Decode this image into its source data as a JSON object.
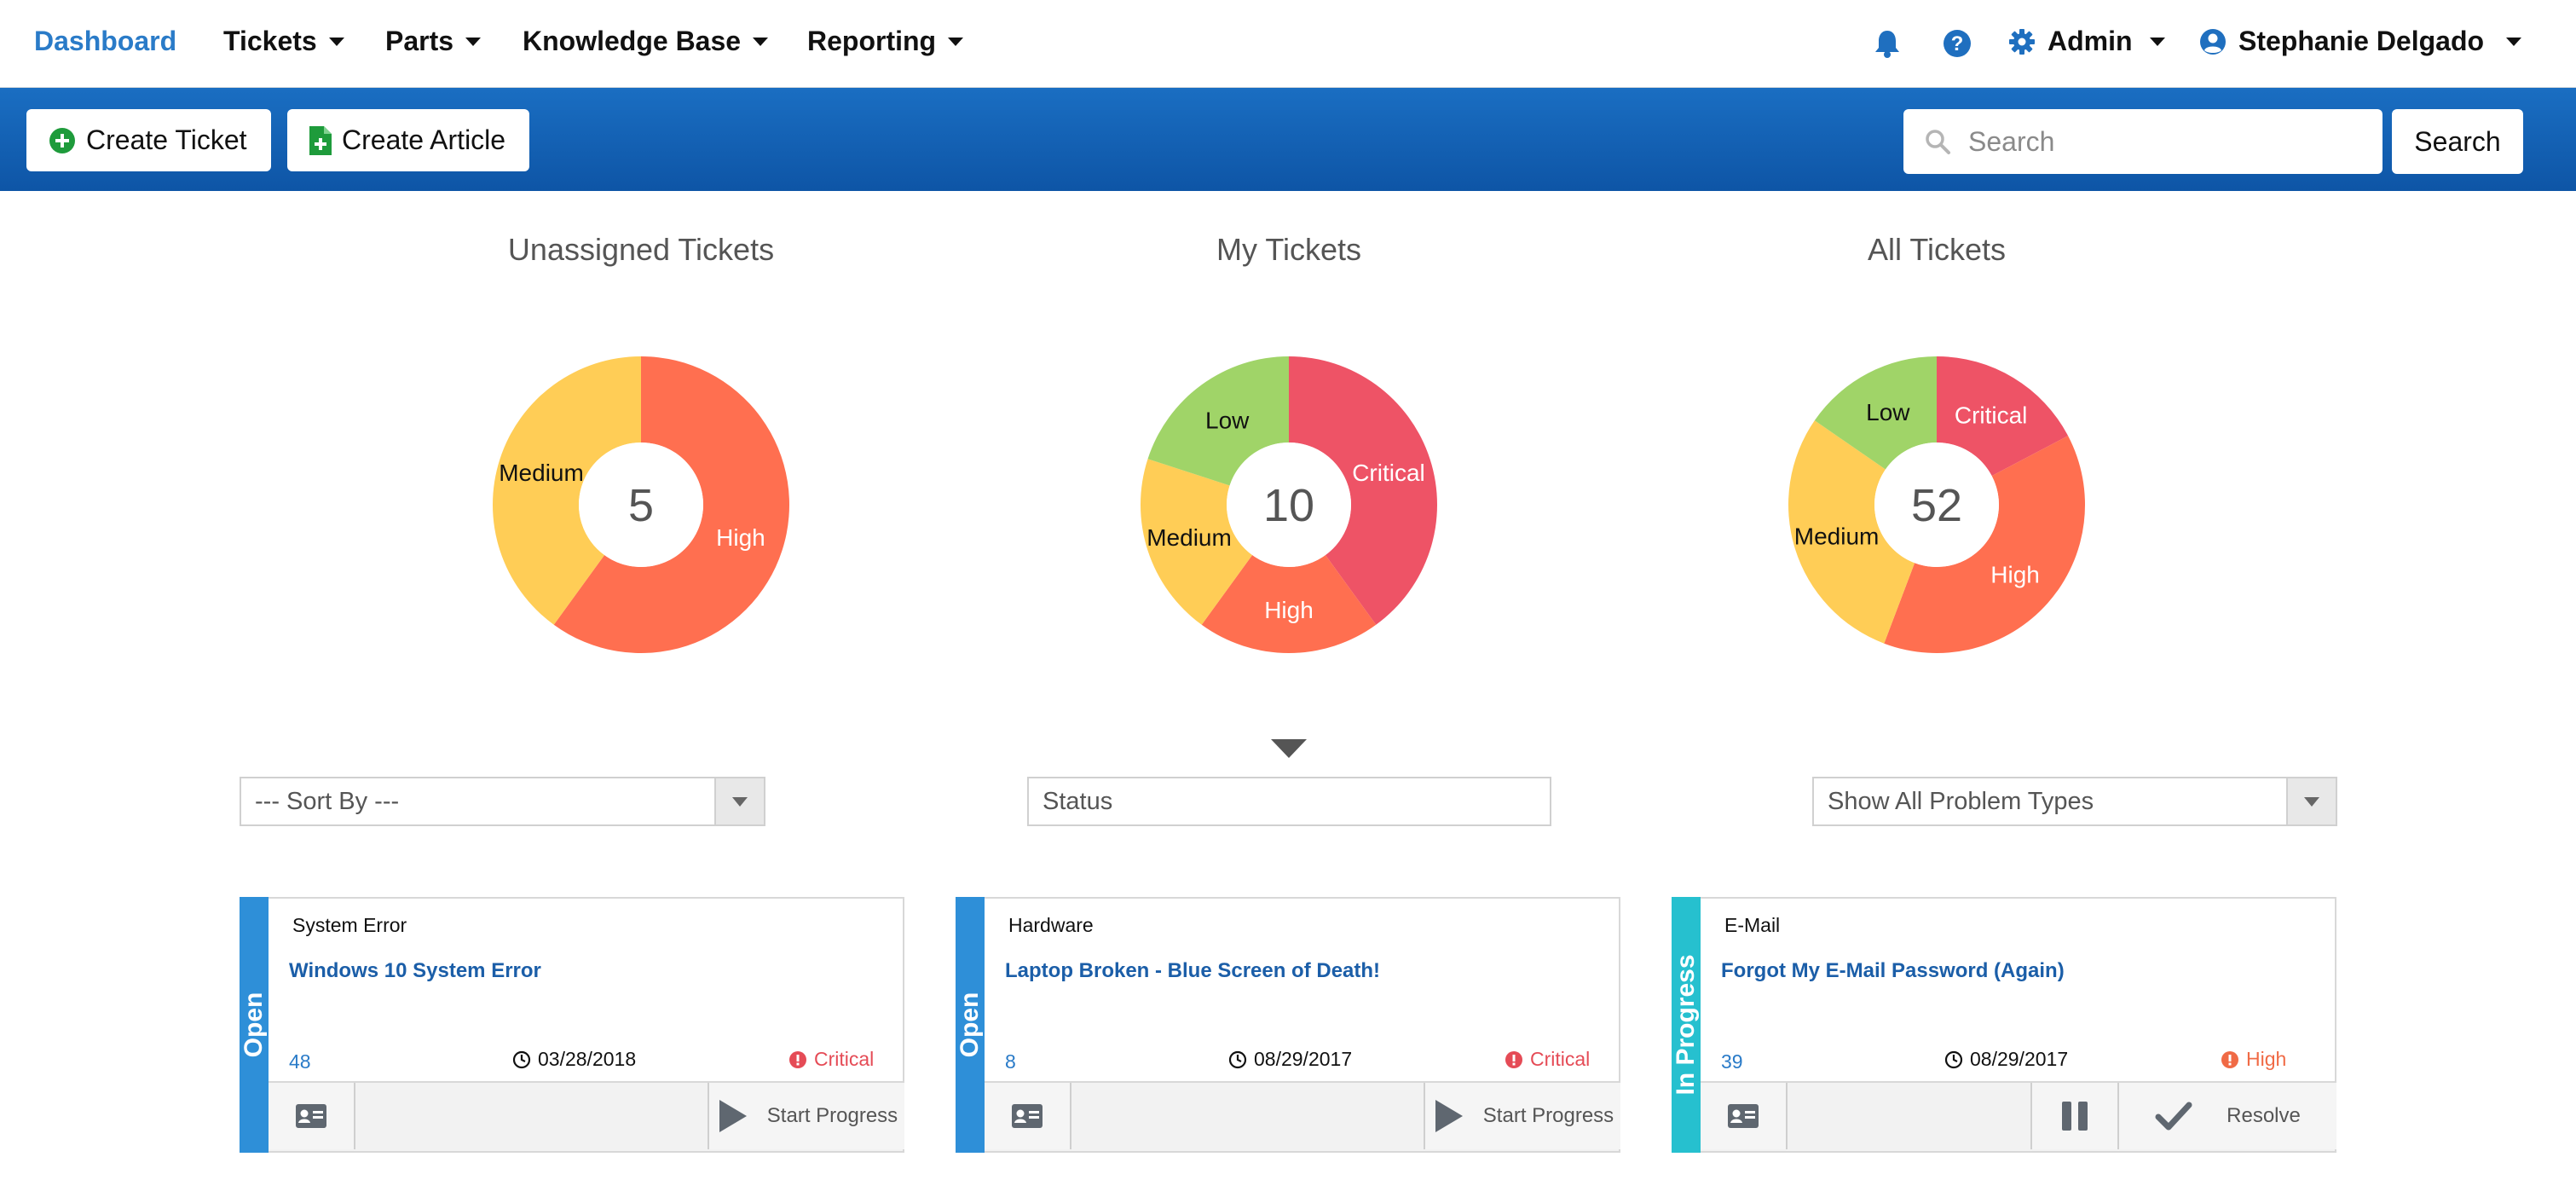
{
  "nav": {
    "brand": "Dashboard",
    "menus": [
      "Tickets",
      "Parts",
      "Knowledge Base",
      "Reporting"
    ],
    "admin": "Admin",
    "user": "Stephanie Delgado"
  },
  "toolbar": {
    "create_ticket": "Create Ticket",
    "create_article": "Create Article",
    "search_placeholder": "Search",
    "search_button": "Search"
  },
  "chart_data": [
    {
      "type": "pie",
      "title": "Unassigned Tickets",
      "total": "5",
      "labels": [
        "High",
        "Medium"
      ],
      "values": [
        3,
        2
      ],
      "colors": [
        "#ff6f50",
        "#ffcd56"
      ]
    },
    {
      "type": "pie",
      "title": "My Tickets",
      "total": "10",
      "labels": [
        "Critical",
        "High",
        "Medium",
        "Low"
      ],
      "values": [
        4,
        2,
        2,
        2
      ],
      "colors": [
        "#ee5366",
        "#ff6f50",
        "#ffcd56",
        "#a0d468"
      ]
    },
    {
      "type": "pie",
      "title": "All Tickets",
      "total": "52",
      "labels": [
        "Critical",
        "High",
        "Medium",
        "Low"
      ],
      "values": [
        9,
        20,
        15,
        8
      ],
      "colors": [
        "#ee5366",
        "#ff6f50",
        "#ffcd56",
        "#a0d468"
      ]
    }
  ],
  "filters": {
    "sort_by": "--- Sort By ---",
    "status": "Status",
    "problem_types": "Show All Problem Types"
  },
  "colors": {
    "status_open": "#2e8fd8",
    "status_in_progress": "#26c0cf",
    "priority_critical": "#e54b56",
    "priority_high": "#f06a45"
  },
  "tickets": [
    {
      "status": "Open",
      "category": "System Error",
      "title": "Windows 10 System Error",
      "id": "48",
      "date": "03/28/2018",
      "priority": "Critical",
      "action": "Start Progress"
    },
    {
      "status": "Open",
      "category": "Hardware",
      "title": "Laptop Broken - Blue Screen of Death!",
      "id": "8",
      "date": "08/29/2017",
      "priority": "Critical",
      "action": "Start Progress"
    },
    {
      "status": "In Progress",
      "category": "E-Mail",
      "title": "Forgot My E-Mail Password (Again)",
      "id": "39",
      "date": "08/29/2017",
      "priority": "High",
      "action": "Resolve"
    }
  ]
}
